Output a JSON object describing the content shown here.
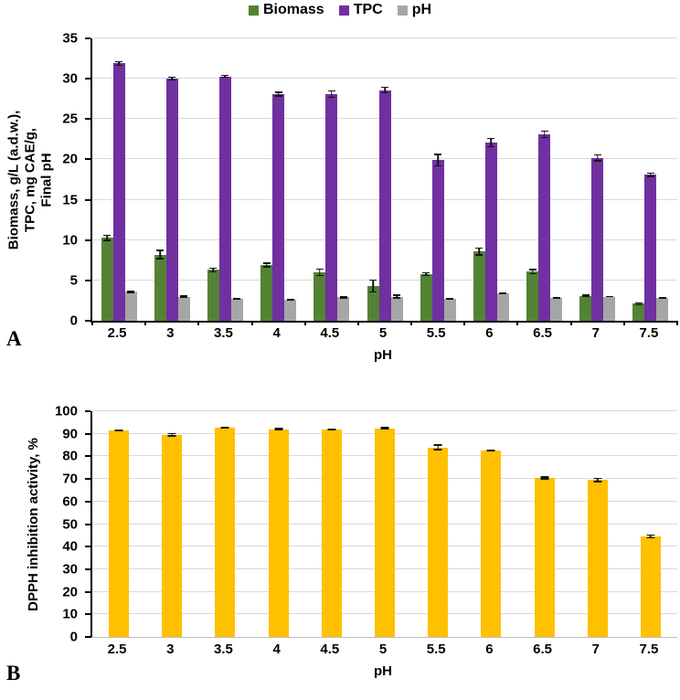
{
  "legend": {
    "items": [
      {
        "label": "Biomass"
      },
      {
        "label": "TPC"
      },
      {
        "label": "pH"
      }
    ]
  },
  "chart_data": [
    {
      "type": "bar",
      "panel_letter": "A",
      "categories": [
        "2.5",
        "3",
        "3.5",
        "4",
        "4.5",
        "5",
        "5.5",
        "6",
        "6.5",
        "7",
        "7.5"
      ],
      "series": [
        {
          "name": "Biomass",
          "color": "#548235",
          "values": [
            10.3,
            8.2,
            6.3,
            6.9,
            6.0,
            4.3,
            5.8,
            8.6,
            6.1,
            3.1,
            2.1
          ],
          "errors": [
            0.4,
            0.6,
            0.3,
            0.3,
            0.5,
            0.8,
            0.25,
            0.5,
            0.35,
            0.15,
            0.2
          ]
        },
        {
          "name": "TPC",
          "color": "#7030A0",
          "values": [
            31.9,
            30.0,
            30.3,
            28.1,
            28.1,
            28.6,
            19.9,
            22.1,
            23.1,
            20.2,
            18.1
          ],
          "errors": [
            0.3,
            0.25,
            0.2,
            0.3,
            0.5,
            0.4,
            0.8,
            0.6,
            0.5,
            0.45,
            0.3
          ]
        },
        {
          "name": "pH",
          "color": "#A6A6A6",
          "values": [
            3.6,
            3.0,
            2.7,
            2.6,
            2.9,
            3.0,
            2.7,
            3.4,
            2.8,
            3.0,
            2.8
          ],
          "errors": [
            0.15,
            0.12,
            0.1,
            0.1,
            0.15,
            0.25,
            0.12,
            0.12,
            0.1,
            0.1,
            0.1
          ]
        }
      ],
      "ylabel": "Biomass, g/L (a.d.w.), TPC, mg CAE/g, Final pH",
      "ylabel_lines": [
        "Biomass, g/L (a.d.w.),",
        "TPC, mg CAE/g,",
        "Final pH"
      ],
      "xlabel": "pH",
      "ylim": [
        0,
        35
      ],
      "ytick_step": 5,
      "grid": true,
      "legend_position": "top",
      "x_boundary_ticks": true
    },
    {
      "type": "bar",
      "panel_letter": "B",
      "categories": [
        "2.5",
        "3",
        "3.5",
        "4",
        "4.5",
        "5",
        "5.5",
        "6",
        "6.5",
        "7",
        "7.5"
      ],
      "series": [
        {
          "name": "DPPH inhibition activity",
          "color": "#FFC000",
          "values": [
            91.5,
            89.5,
            92.8,
            92.0,
            92.0,
            92.5,
            84.0,
            82.5,
            70.5,
            69.5,
            44.5
          ],
          "errors": [
            0.6,
            0.8,
            0.5,
            0.6,
            0.5,
            0.5,
            1.3,
            0.5,
            0.7,
            1.0,
            0.9
          ]
        }
      ],
      "ylabel": "DPPH inhibition activity, %",
      "ylabel_lines": [
        "DPPH inhibition activity, %"
      ],
      "xlabel": "pH",
      "ylim": [
        0,
        100
      ],
      "ytick_step": 10,
      "grid": true,
      "legend_position": "none",
      "x_boundary_ticks": false
    }
  ]
}
